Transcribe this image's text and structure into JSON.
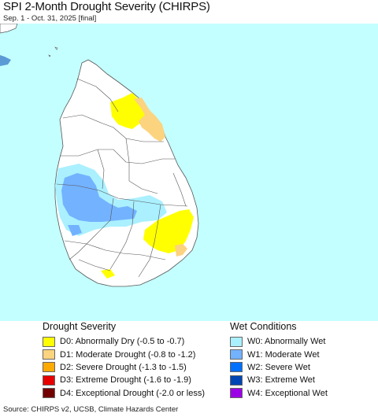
{
  "header": {
    "title": "SPI 2-Month Drought Severity (CHIRPS)",
    "subtitle": "Sep. 1 - Oct. 31, 2025 [final]"
  },
  "map": {
    "region": "Sri Lanka",
    "ocean_color": "#c4ffff",
    "land_color": "#ffffff",
    "border_color": "#555555",
    "india_tip_color": "#5b9bd5"
  },
  "legend": {
    "drought": {
      "heading": "Drought Severity",
      "items": [
        {
          "label": "D0: Abnormally Dry (-0.5 to -0.7)",
          "color": "#ffff00"
        },
        {
          "label": "D1: Moderate Drought (-0.8 to -1.2)",
          "color": "#fcd37f"
        },
        {
          "label": "D2: Severe Drought (-1.3 to -1.5)",
          "color": "#ffaa00"
        },
        {
          "label": "D3: Extreme Drought (-1.6 to -1.9)",
          "color": "#e60000"
        },
        {
          "label": "D4: Exceptional Drought (-2.0 or less)",
          "color": "#730000"
        }
      ]
    },
    "wet": {
      "heading": "Wet Conditions",
      "items": [
        {
          "label": "W0: Abnormally Wet",
          "color": "#aaf0ff"
        },
        {
          "label": "W1: Moderate Wet",
          "color": "#73b2ff"
        },
        {
          "label": "W2: Severe Wet",
          "color": "#0070ff"
        },
        {
          "label": "W3: Extreme Wet",
          "color": "#0046b4"
        },
        {
          "label": "W4: Exceptional Wet",
          "color": "#9c00e6"
        }
      ]
    }
  },
  "footer": {
    "source": "Source: CHIRPS v2, UCSB, Climate Hazards Center"
  }
}
